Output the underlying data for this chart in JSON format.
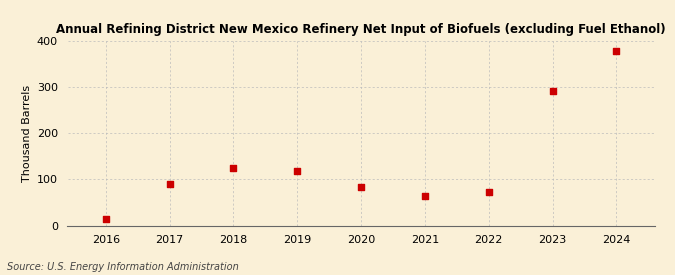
{
  "title": "Annual Refining District New Mexico Refinery Net Input of Biofuels (excluding Fuel Ethanol)",
  "ylabel": "Thousand Barrels",
  "source": "Source: U.S. Energy Information Administration",
  "years": [
    2016,
    2017,
    2018,
    2019,
    2020,
    2021,
    2022,
    2023,
    2024
  ],
  "values": [
    15,
    90,
    125,
    118,
    83,
    63,
    72,
    291,
    379
  ],
  "marker_color": "#CC0000",
  "marker": "s",
  "marker_size": 4,
  "background_color": "#FAF0D7",
  "grid_color": "#BBBBBB",
  "ylim": [
    0,
    400
  ],
  "yticks": [
    0,
    100,
    200,
    300,
    400
  ],
  "title_fontsize": 8.5,
  "axis_fontsize": 8,
  "source_fontsize": 7
}
